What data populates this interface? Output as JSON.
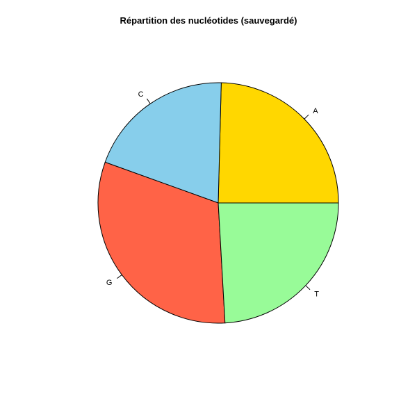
{
  "chart_data": {
    "type": "pie",
    "title": "Répartition des nucléotides (sauvegardé)",
    "start_angle_deg": 0,
    "direction": "counterclockwise",
    "slices": [
      {
        "label": "A",
        "value": 24.6,
        "color": "#FFD700"
      },
      {
        "label": "C",
        "value": 19.9,
        "color": "#87CEEB"
      },
      {
        "label": "G",
        "value": 31.4,
        "color": "#FF6347"
      },
      {
        "label": "T",
        "value": 24.1,
        "color": "#98FB98"
      }
    ]
  }
}
